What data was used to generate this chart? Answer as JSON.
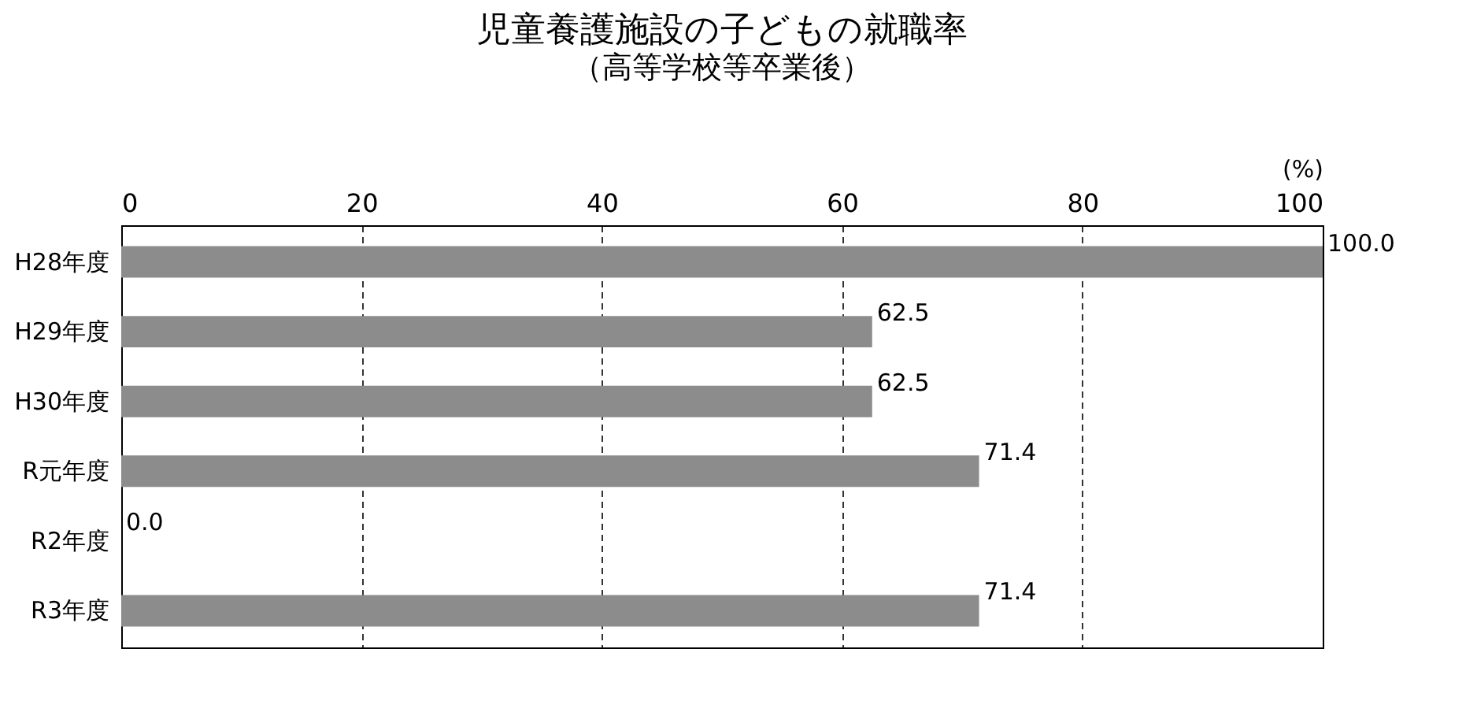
{
  "chart_data": {
    "type": "bar",
    "orientation": "horizontal",
    "title": "児童養護施設の子どもの就職率",
    "subtitle": "（高等学校等卒業後）",
    "xlabel": "(%)",
    "categories": [
      "H28年度",
      "H29年度",
      "H30年度",
      "R元年度",
      "R2年度",
      "R3年度"
    ],
    "values": [
      100.0,
      62.5,
      62.5,
      71.4,
      0.0,
      71.4
    ],
    "color": "#8c8c8c",
    "value_labels": [
      "100.0",
      "62.5",
      "62.5",
      "71.4",
      "0.0",
      "71.4"
    ],
    "xlim": [
      0,
      100
    ],
    "xticks": [
      0,
      20,
      40,
      60,
      80,
      100
    ],
    "grid": "x"
  }
}
